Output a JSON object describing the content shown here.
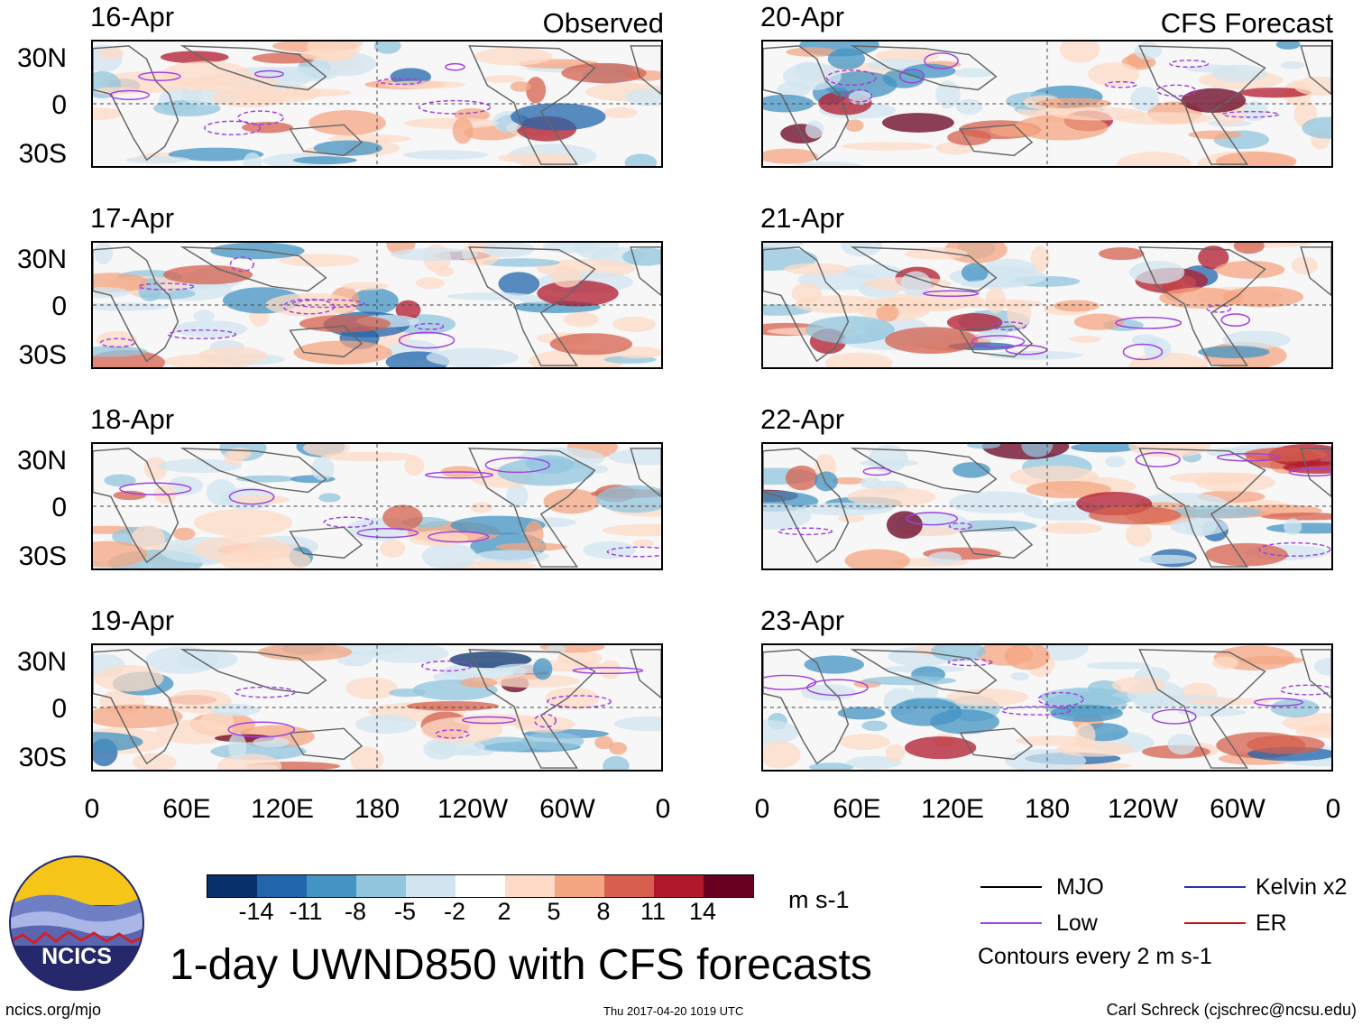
{
  "headers": {
    "observed": "Observed",
    "forecast": "CFS Forecast"
  },
  "left_panels": [
    {
      "date": "16-Apr"
    },
    {
      "date": "17-Apr"
    },
    {
      "date": "18-Apr"
    },
    {
      "date": "19-Apr"
    }
  ],
  "right_panels": [
    {
      "date": "20-Apr"
    },
    {
      "date": "21-Apr"
    },
    {
      "date": "22-Apr"
    },
    {
      "date": "23-Apr"
    }
  ],
  "lat_labels": [
    "30N",
    "0",
    "30S"
  ],
  "lon_labels": [
    "0",
    "60E",
    "120E",
    "180",
    "120W",
    "60W",
    "0"
  ],
  "colorbar": {
    "colors": [
      "#08306b",
      "#2166ac",
      "#4393c3",
      "#92c5de",
      "#d1e5f0",
      "#ffffff",
      "#fddbc7",
      "#f4a582",
      "#d6604d",
      "#b2182b",
      "#67001f"
    ],
    "ticks": [
      "-14",
      "-11",
      "-8",
      "-5",
      "-2",
      "2",
      "5",
      "8",
      "11",
      "14"
    ],
    "units": "m s-1"
  },
  "title": "1-day UWND850 with CFS forecasts",
  "logo_text": "NCICS",
  "legend": {
    "items": [
      {
        "label": "MJO",
        "color": "#000000"
      },
      {
        "label": "Low",
        "color": "#a040e0"
      },
      {
        "label": "Kelvin x2",
        "color": "#3030b0"
      },
      {
        "label": "ER",
        "color": "#d01010"
      }
    ],
    "note": "Contours every 2 m s-1"
  },
  "footer": {
    "url": "ncics.org/mjo",
    "timestamp": "Thu 2017-04-20 1019 UTC",
    "credit": "Carl Schreck (cjschrec@ncsu.edu)"
  }
}
